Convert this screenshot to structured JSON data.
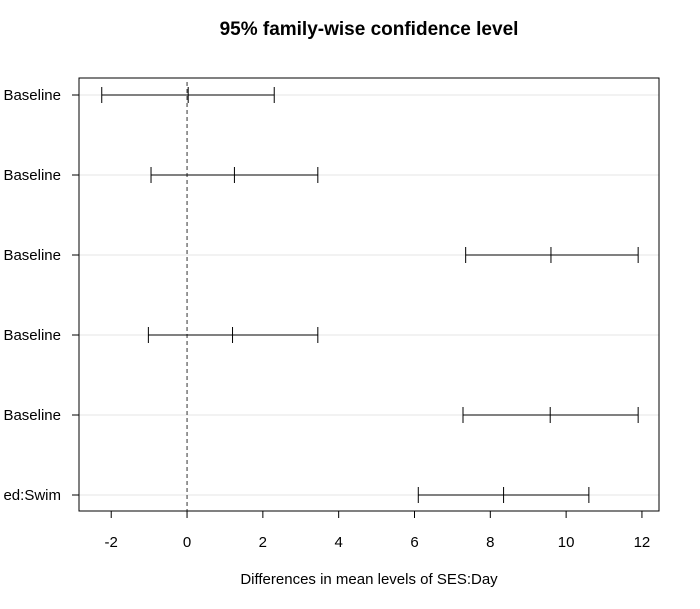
{
  "chart_data": {
    "type": "interval",
    "title": "95% family-wise confidence level",
    "xlabel": "Differences in mean levels of SES:Day",
    "ylabel": "",
    "xlim": [
      -2.85,
      12.45
    ],
    "xticks": [
      -2,
      0,
      2,
      4,
      6,
      8,
      10,
      12
    ],
    "reference_line": 0,
    "grid": "horizontal",
    "intervals": [
      {
        "label": "Baseline",
        "lower": -2.25,
        "estimate": 0.03,
        "upper": 2.3
      },
      {
        "label": "Baseline",
        "lower": -0.95,
        "estimate": 1.25,
        "upper": 3.45
      },
      {
        "label": "Baseline",
        "lower": 7.35,
        "estimate": 9.6,
        "upper": 11.9
      },
      {
        "label": "Baseline",
        "lower": -1.02,
        "estimate": 1.2,
        "upper": 3.45
      },
      {
        "label": "Baseline",
        "lower": 7.28,
        "estimate": 9.58,
        "upper": 11.9
      },
      {
        "label": "ed:Swim",
        "lower": 6.1,
        "estimate": 8.35,
        "upper": 10.6
      }
    ]
  }
}
